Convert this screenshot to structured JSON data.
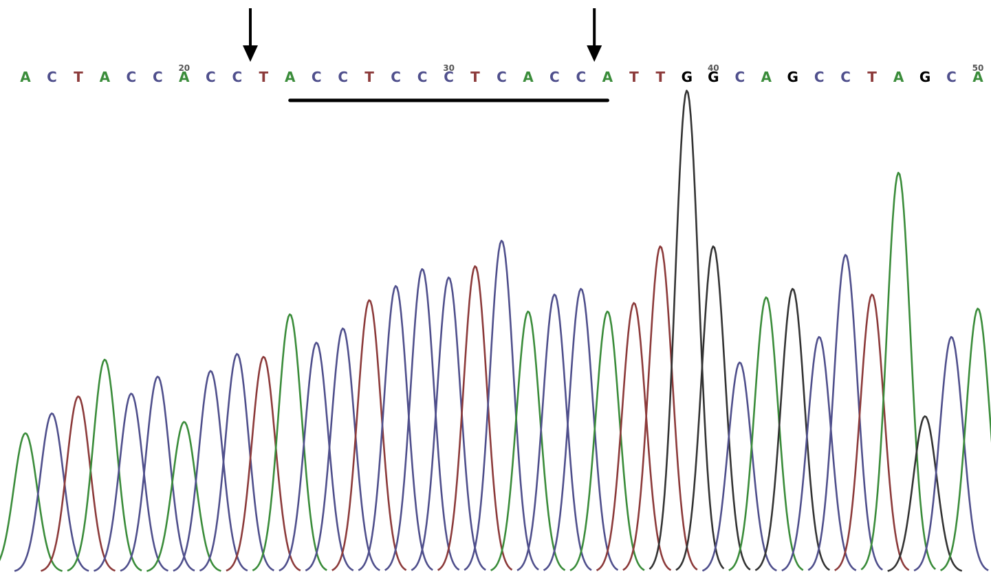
{
  "chart_data": {
    "type": "line",
    "title": "",
    "xlabel": "",
    "ylabel": "",
    "grid": false,
    "legend": "none",
    "sequence": [
      "A",
      "C",
      "T",
      "A",
      "C",
      "C",
      "A",
      "C",
      "C",
      "T",
      "A",
      "C",
      "C",
      "T",
      "C",
      "C",
      "C",
      "T",
      "C",
      "A",
      "C",
      "C",
      "A",
      "T",
      "T",
      "G",
      "G",
      "C",
      "A",
      "G",
      "C",
      "C",
      "T",
      "A",
      "G",
      "C",
      "A"
    ],
    "first_base_index": 14,
    "position_labels": [
      {
        "base_index": 20,
        "label": "20"
      },
      {
        "base_index": 30,
        "label": "30"
      },
      {
        "base_index": 40,
        "label": "40"
      },
      {
        "base_index": 50,
        "label": "50"
      }
    ],
    "peak_heights": [
      0.49,
      0.56,
      0.62,
      0.75,
      0.63,
      0.69,
      0.53,
      0.71,
      0.77,
      0.76,
      0.91,
      0.81,
      0.86,
      0.96,
      1.01,
      1.07,
      1.04,
      1.08,
      1.17,
      0.92,
      0.98,
      1.0,
      0.92,
      0.95,
      1.15,
      1.7,
      1.15,
      0.74,
      0.97,
      1.0,
      0.83,
      1.12,
      0.98,
      1.41,
      0.55,
      0.83,
      0.93
    ],
    "series": [
      {
        "name": "A",
        "color": "#3a8c3a"
      },
      {
        "name": "C",
        "color": "#4f4f8c"
      },
      {
        "name": "G",
        "color": "#333333"
      },
      {
        "name": "T",
        "color": "#8c3a3a"
      }
    ],
    "annotations": {
      "arrows_at_base_index": [
        23,
        36
      ],
      "underline_from_base_index": 24,
      "underline_to_base_index": 36
    }
  }
}
